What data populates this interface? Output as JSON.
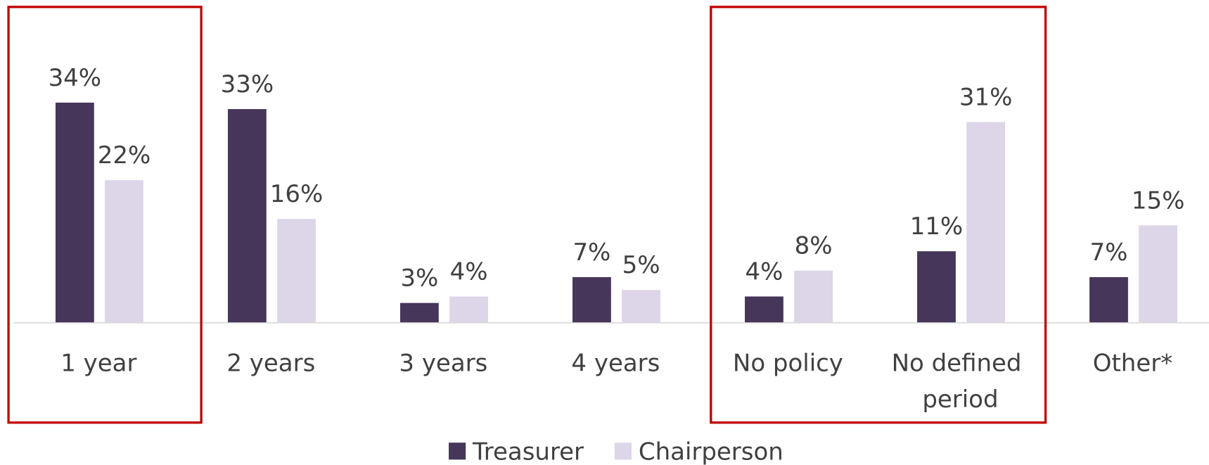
{
  "chart_data": {
    "type": "bar",
    "categories": [
      "1 year",
      "2 years",
      "3 years",
      "4 years",
      "No policy",
      "No defined period",
      "Other*"
    ],
    "series": [
      {
        "name": "Treasurer",
        "color": "#46365a",
        "values": [
          34,
          33,
          3,
          7,
          4,
          11,
          7
        ],
        "value_labels": [
          "34%",
          "33%",
          "3%",
          "7%",
          "4%",
          "11%",
          "7%"
        ]
      },
      {
        "name": "Chairperson",
        "color": "#ddd5e8",
        "values": [
          22,
          16,
          4,
          5,
          8,
          31,
          15
        ],
        "value_labels": [
          "22%",
          "16%",
          "4%",
          "5%",
          "8%",
          "31%",
          "15%"
        ]
      }
    ]
  }
}
